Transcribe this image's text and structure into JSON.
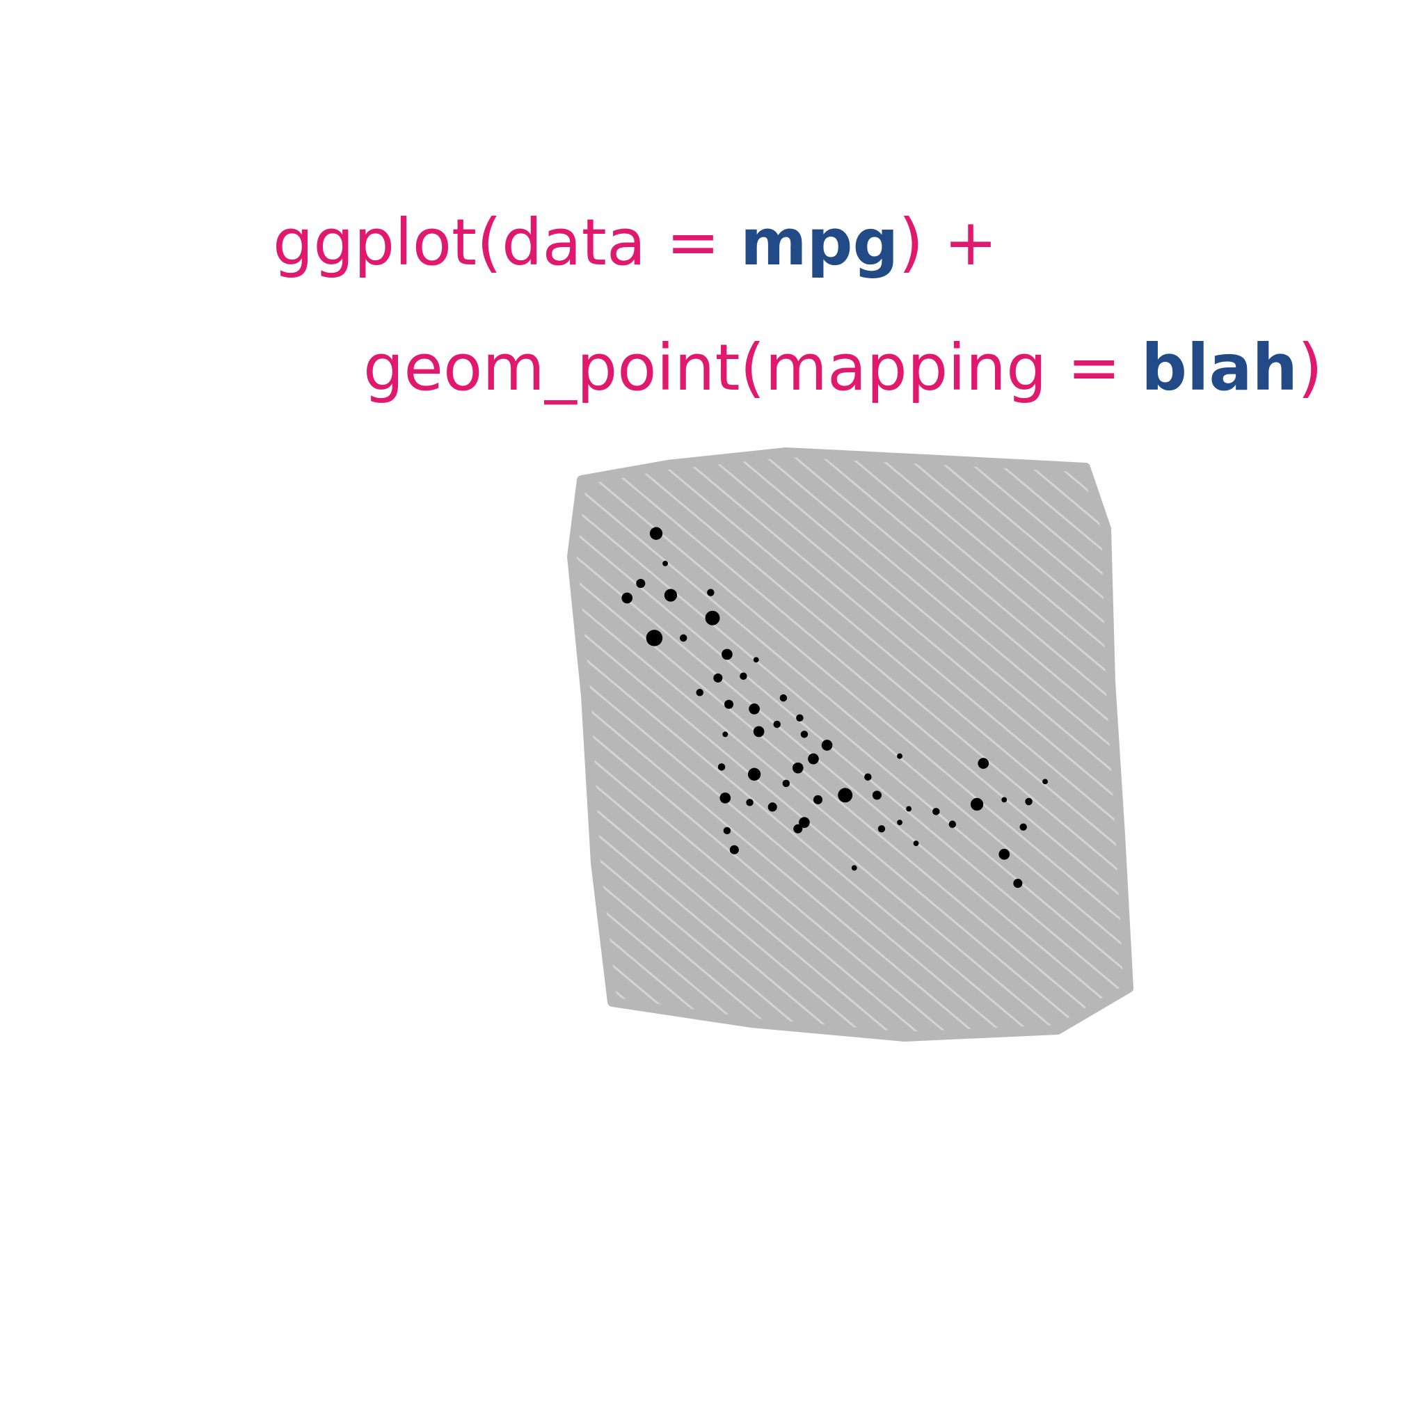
{
  "code": {
    "line1": {
      "call": "ggplot(data = ",
      "arg": "mpg",
      "end": ") +"
    },
    "line2": {
      "call": "geom_point(mapping = ",
      "arg": "blah",
      "end": ")"
    }
  }
}
